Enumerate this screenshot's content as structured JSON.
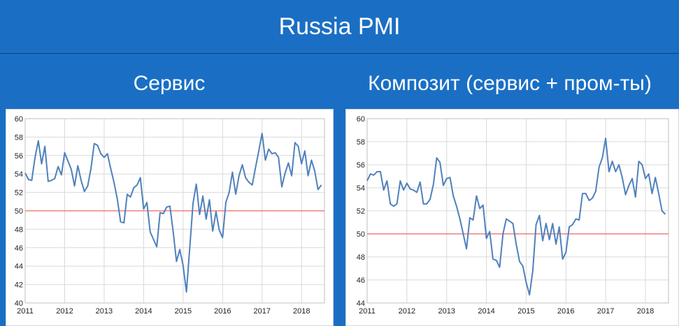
{
  "header": {
    "title": "Russia PMI",
    "subtitle_left": "Сервис",
    "subtitle_right": "Композит (сервис + пром-ты)"
  },
  "colors": {
    "background": "#1a6fc4",
    "series_line": "#4f81bd",
    "reference_line": "#e8413c"
  },
  "chart_data": [
    {
      "type": "line",
      "title": "Сервис",
      "xlabel": "",
      "ylabel": "",
      "xlim": [
        2011.0,
        2018.58
      ],
      "ylim": [
        40,
        60
      ],
      "yticks": [
        40,
        42,
        44,
        46,
        48,
        50,
        52,
        54,
        56,
        58,
        60
      ],
      "xticks": [
        2011,
        2012,
        2013,
        2014,
        2015,
        2016,
        2017,
        2018
      ],
      "x_start": 2011.0,
      "x_step": 0.08333,
      "grid": true,
      "reference_line": 50,
      "series": [
        {
          "name": "",
          "values": [
            54.1,
            53.4,
            53.3,
            55.8,
            57.6,
            55.1,
            57.0,
            53.2,
            53.3,
            53.5,
            54.8,
            53.9,
            56.3,
            55.4,
            54.5,
            52.7,
            54.9,
            53.3,
            52.1,
            52.7,
            54.6,
            57.3,
            57.1,
            56.2,
            55.8,
            56.2,
            54.6,
            53.1,
            51.3,
            48.8,
            48.7,
            51.8,
            51.5,
            52.5,
            52.8,
            53.6,
            50.2,
            50.9,
            47.7,
            46.9,
            46.1,
            49.8,
            49.7,
            50.4,
            50.5,
            47.7,
            44.5,
            45.8,
            44.1,
            41.2,
            45.9,
            50.8,
            52.9,
            49.6,
            51.6,
            49.1,
            51.2,
            47.8,
            49.9,
            47.9,
            47.1,
            50.9,
            52.0,
            54.2,
            51.8,
            53.8,
            55.0,
            53.6,
            53.1,
            52.8,
            54.7,
            56.5,
            58.4,
            55.5,
            56.7,
            56.2,
            56.3,
            55.8,
            52.6,
            54.1,
            55.2,
            53.8,
            57.4,
            57.0,
            55.1,
            56.5,
            53.8,
            55.5,
            54.3,
            52.3,
            52.8
          ]
        }
      ]
    },
    {
      "type": "line",
      "title": "Композит (сервис + пром-ты)",
      "xlabel": "",
      "ylabel": "",
      "xlim": [
        2011.0,
        2018.58
      ],
      "ylim": [
        44,
        60
      ],
      "yticks": [
        44,
        46,
        48,
        50,
        52,
        54,
        56,
        58,
        60
      ],
      "xticks": [
        2011,
        2012,
        2013,
        2014,
        2015,
        2016,
        2017,
        2018
      ],
      "x_start": 2011.0,
      "x_step": 0.08333,
      "grid": true,
      "reference_line": 50,
      "series": [
        {
          "name": "",
          "values": [
            54.6,
            55.2,
            55.1,
            55.4,
            55.4,
            53.8,
            54.6,
            52.6,
            52.4,
            52.6,
            54.6,
            53.8,
            54.4,
            53.9,
            53.8,
            53.6,
            54.5,
            52.6,
            52.6,
            53.0,
            54.3,
            56.6,
            56.2,
            54.2,
            54.8,
            54.9,
            53.3,
            52.4,
            51.3,
            50.0,
            48.7,
            51.4,
            51.2,
            53.3,
            52.2,
            52.5,
            49.6,
            50.2,
            47.8,
            47.7,
            47.1,
            50.0,
            51.3,
            51.1,
            50.9,
            49.1,
            47.6,
            47.2,
            45.8,
            44.7,
            46.8,
            50.8,
            51.6,
            49.4,
            50.9,
            49.5,
            50.9,
            49.1,
            50.6,
            47.8,
            48.4,
            50.6,
            50.8,
            51.3,
            51.2,
            53.5,
            53.5,
            52.9,
            53.1,
            53.7,
            55.8,
            56.6,
            58.3,
            55.4,
            56.3,
            55.4,
            56.0,
            54.9,
            53.4,
            54.2,
            54.8,
            53.2,
            56.3,
            56.0,
            54.8,
            55.2,
            53.5,
            54.9,
            53.5,
            52.0,
            51.7
          ]
        }
      ]
    }
  ]
}
